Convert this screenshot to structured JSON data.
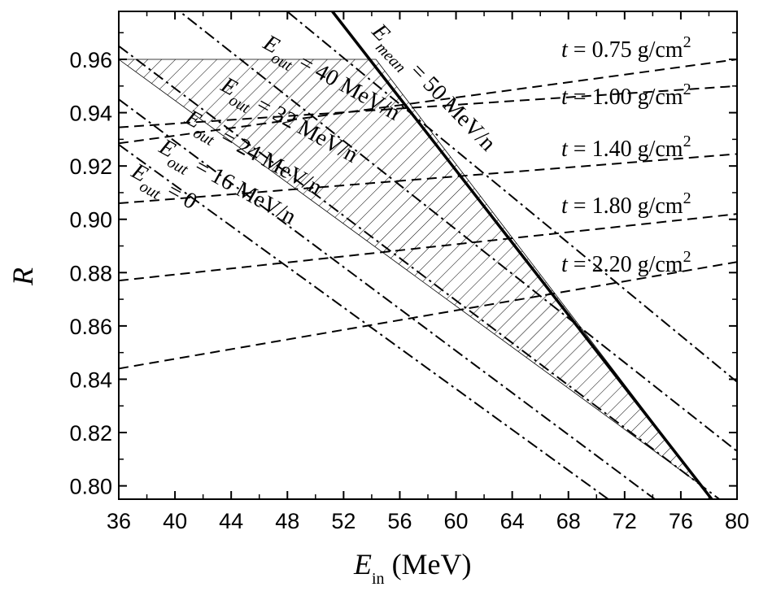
{
  "chart_data": {
    "type": "line",
    "xlabel_main": "E",
    "xlabel_sub": "in",
    "xlabel_unit": " (MeV)",
    "ylabel": "R",
    "xlim": [
      36,
      80
    ],
    "ylim": [
      0.795,
      0.978
    ],
    "x_ticks": [
      36,
      40,
      44,
      48,
      52,
      56,
      60,
      64,
      68,
      72,
      76,
      80
    ],
    "y_ticks": [
      "0.80",
      "0.82",
      "0.84",
      "0.86",
      "0.88",
      "0.90",
      "0.92",
      "0.94",
      "0.96"
    ],
    "y_tick_values": [
      0.8,
      0.82,
      0.84,
      0.86,
      0.88,
      0.9,
      0.92,
      0.94,
      0.96
    ],
    "grid": false,
    "thickness_lines": [
      {
        "label": "t = 0.75 g/cm",
        "sup": "2",
        "x": [
          36,
          80
        ],
        "y": [
          0.9285,
          0.96
        ]
      },
      {
        "label": "t = 1.00 g/cm",
        "sup": "2",
        "x": [
          36,
          80
        ],
        "y": [
          0.9345,
          0.95
        ]
      },
      {
        "label": "t = 1.40 g/cm",
        "sup": "2",
        "x": [
          36,
          80
        ],
        "y": [
          0.906,
          0.9245
        ]
      },
      {
        "label": "t = 1.80 g/cm",
        "sup": "2",
        "x": [
          36,
          80
        ],
        "y": [
          0.877,
          0.902
        ]
      },
      {
        "label": "t = 2.20 g/cm",
        "sup": "2",
        "x": [
          36,
          80
        ],
        "y": [
          0.844,
          0.884
        ]
      }
    ],
    "eout_lines": [
      {
        "label": "E",
        "sub": "out",
        "value": " = 40 MeV/n",
        "x": [
          36,
          80
        ],
        "y": [
          1.03,
          0.839
        ]
      },
      {
        "label": "E",
        "sub": "out",
        "value": " = 32 MeV/n",
        "x": [
          36,
          80
        ],
        "y": [
          0.996,
          0.813
        ]
      },
      {
        "label": "E",
        "sub": "out",
        "value": " = 24 MeV/n",
        "x": [
          36,
          80
        ],
        "y": [
          0.965,
          0.79
        ]
      },
      {
        "label": "E",
        "sub": "out",
        "value": " = 16 MeV/n",
        "x": [
          36,
          80
        ],
        "y": [
          0.945,
          0.772
        ]
      },
      {
        "label": "E",
        "sub": "out",
        "value": " = 0",
        "x": [
          36,
          80
        ],
        "y": [
          0.928,
          0.76
        ]
      }
    ],
    "emean_line": {
      "label": "E",
      "sub": "mean",
      "value": " = 50 MeV/n",
      "x": [
        51.2,
        78.2
      ],
      "y": [
        0.978,
        0.795
      ]
    },
    "shaded_region": {
      "boundary": [
        [
          36,
          0.96
        ],
        [
          54.3,
          0.96
        ],
        [
          77.5,
          0.8
        ],
        [
          36,
          0.96
        ]
      ],
      "pattern": "diagonal hatch"
    }
  }
}
